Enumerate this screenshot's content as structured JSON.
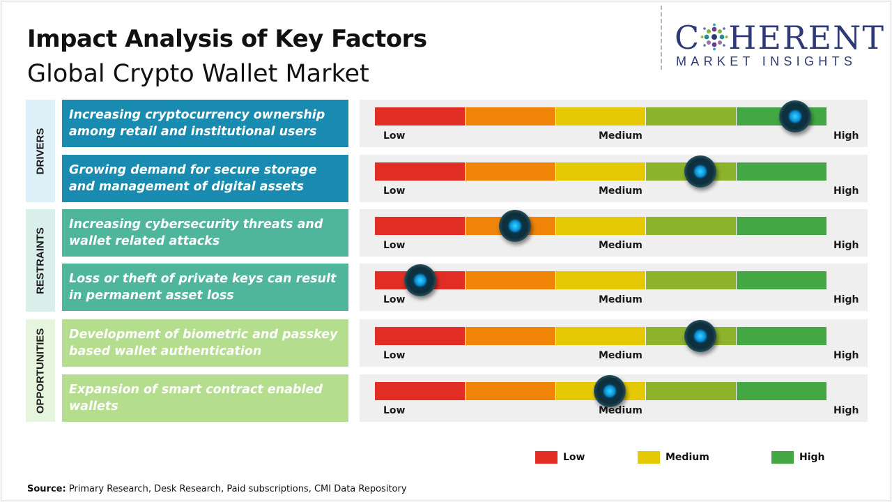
{
  "header": {
    "title": "Impact Analysis of Key Factors",
    "subtitle": "Global Crypto Wallet Market"
  },
  "logo": {
    "word_left": "C",
    "word_right": "HERENT",
    "tagline": "MARKET INSIGHTS"
  },
  "categories": [
    {
      "label": "DRIVERS",
      "color": "#ddf1f8"
    },
    {
      "label": "RESTRAINTS",
      "color": "#d9f0ea"
    },
    {
      "label": "OPPORTUNITIES",
      "color": "#e6f5dd"
    }
  ],
  "scale_labels": {
    "low": "Low",
    "medium": "Medium",
    "high": "High"
  },
  "segment_colors": [
    "#e12d24",
    "#ef8409",
    "#e6c905",
    "#8db22c",
    "#43a844"
  ],
  "chart_data": {
    "type": "gauge",
    "scale": [
      "Low",
      "Medium",
      "High"
    ],
    "factors": [
      {
        "category": "DRIVERS",
        "text": "Increasing cryptocurrency ownership among retail and institutional users",
        "impact": 0.93,
        "box_color": "#1a8bb0"
      },
      {
        "category": "DRIVERS",
        "text": "Growing demand for secure storage and management of digital assets",
        "impact": 0.72,
        "box_color": "#1a8bb0"
      },
      {
        "category": "RESTRAINTS",
        "text": "Increasing cybersecurity threats and wallet related attacks",
        "impact": 0.31,
        "box_color": "#4fb59b"
      },
      {
        "category": "RESTRAINTS",
        "text": "Loss or theft of private keys can result in permanent asset loss",
        "impact": 0.1,
        "box_color": "#4fb59b"
      },
      {
        "category": "OPPORTUNITIES",
        "text": "Development of biometric and passkey based wallet authentication",
        "impact": 0.72,
        "box_color": "#b4de8e"
      },
      {
        "category": "OPPORTUNITIES",
        "text": "Expansion of smart contract enabled wallets",
        "impact": 0.52,
        "box_color": "#b4de8e"
      }
    ],
    "legend": [
      {
        "label": "Low",
        "color": "#e12d24"
      },
      {
        "label": "Medium",
        "color": "#e6c905"
      },
      {
        "label": "High",
        "color": "#43a844"
      }
    ]
  },
  "source": {
    "label": "Source:",
    "text": " Primary Research, Desk Research, Paid subscriptions, CMI Data Repository"
  }
}
